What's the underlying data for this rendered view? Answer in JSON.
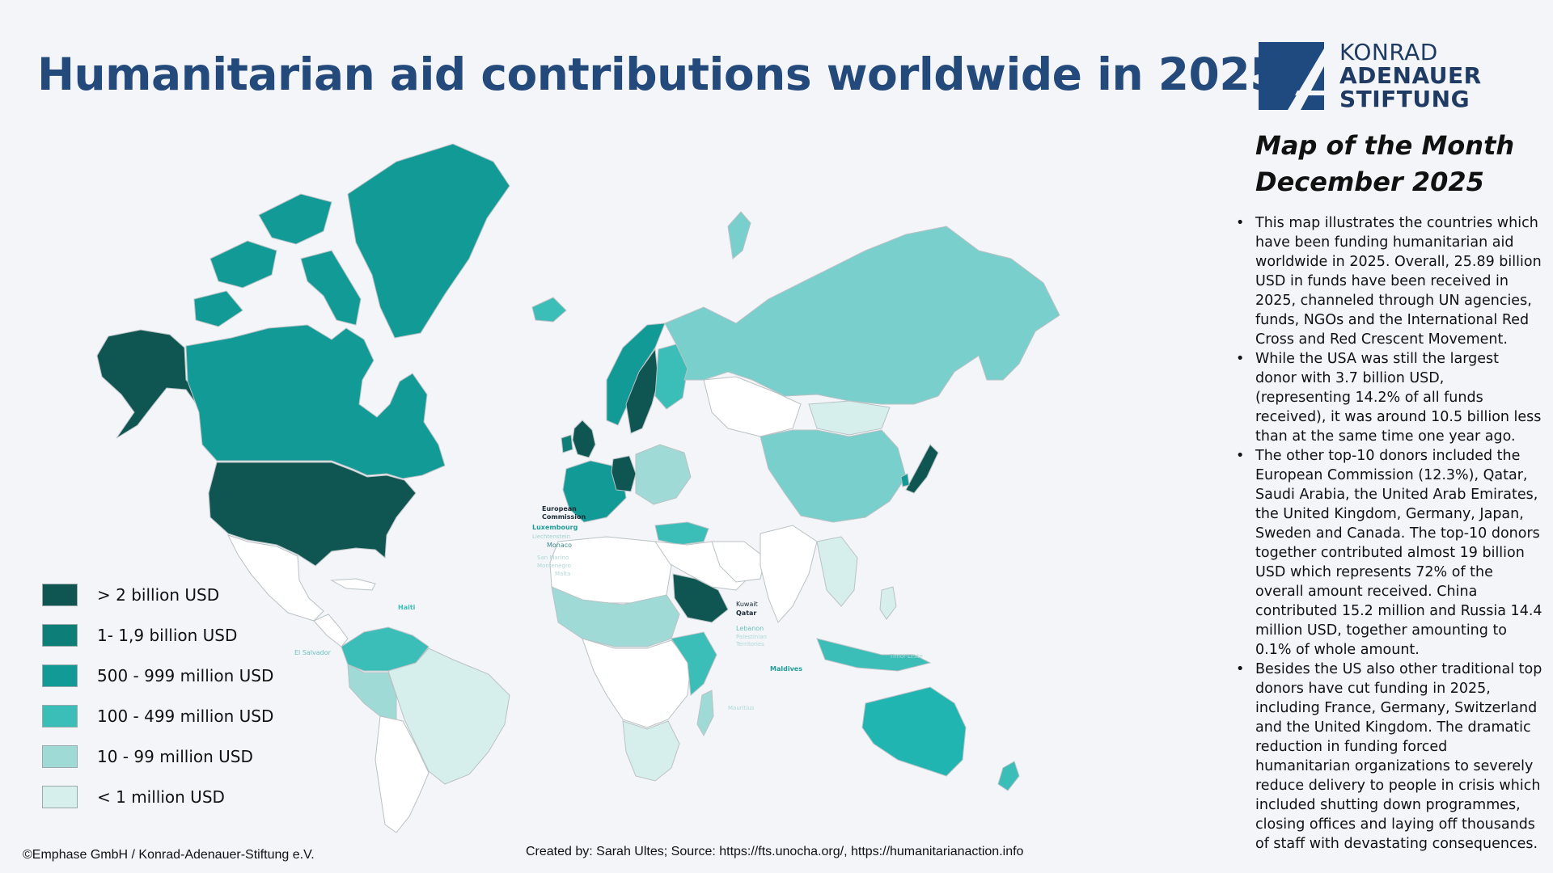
{
  "title": "Humanitarian aid contributions worldwide in 2025",
  "logo": {
    "line1": "KONRAD",
    "line2": "ADENAUER",
    "line3": "STIFTUNG",
    "color": "#1f4a80"
  },
  "map_of_month": {
    "line1": "Map of the Month",
    "line2": "December 2025"
  },
  "bullets": [
    "This map illustrates the countries which have been funding humanitarian aid worldwide in 2025. Overall, 25.89 billion USD in funds have been received in 2025, channeled through UN agencies, funds, NGOs and the International Red Cross and Red Crescent Movement.",
    "While the USA was still the largest donor with 3.7 billion USD, (representing 14.2% of all funds received), it was around 10.5 billion less than at the same time one year ago.",
    "The other top-10 donors included the European Commission (12.3%), Qatar, Saudi Arabia, the United Arab Emirates, the United Kingdom, Germany, Japan, Sweden and Canada. The top-10 donors together contributed almost 19 billion USD which represents 72% of the overall amount received. China contributed 15.2 million and Russia 14.4 million USD, together amounting to 0.1% of whole amount.",
    "Besides the US also other traditional top donors have cut funding in 2025, including France, Germany, Switzerland and the United Kingdom. The dramatic reduction in funding forced humanitarian organizations to severely reduce delivery to people in crisis which included shutting down programmes, closing offices and laying off thousands of staff with devastating consequences."
  ],
  "legend": [
    {
      "label": "> 2 billion USD",
      "color": "#0f5551"
    },
    {
      "label": "1- 1,9 billion USD",
      "color": "#0d7e78"
    },
    {
      "label": "500 - 999 million USD",
      "color": "#129a96"
    },
    {
      "label": "100 - 499 million USD",
      "color": "#3bbdb8"
    },
    {
      "label": "10 - 99 million USD",
      "color": "#9fdad7"
    },
    {
      "label": "< 1 million USD",
      "color": "#d6eeec"
    }
  ],
  "map_labels": {
    "european_commission_1": "European",
    "european_commission_2": "Commission",
    "luxembourg": "Luxembourg",
    "liechtenstein": "Liechtenstein",
    "monaco": "Monaco",
    "san_marino": "San Marino",
    "montenegro": "Montenegro",
    "malta": "Malta",
    "haiti": "Haiti",
    "el_salvador": "El Salvador",
    "kuwait": "Kuwait",
    "qatar": "Qatar",
    "lebanon": "Lebanon",
    "palestinian_1": "Palestinian",
    "palestinian_2": "Territories",
    "maldives": "Maldives",
    "timor_leste": "Timor-Leste",
    "mauritius": "Mauritius"
  },
  "colors": {
    "no_data": "#ffffff",
    "border": "#b9c2c4",
    "title": "#244a7c",
    "background": "#f3f5f9"
  },
  "footer": {
    "left": "©Emphase GmbH / Konrad-Adenauer-Stiftung e.V.",
    "center": "Created by: Sarah Ultes; Source: https://fts.unocha.org/, https://humanitarianaction.info"
  }
}
